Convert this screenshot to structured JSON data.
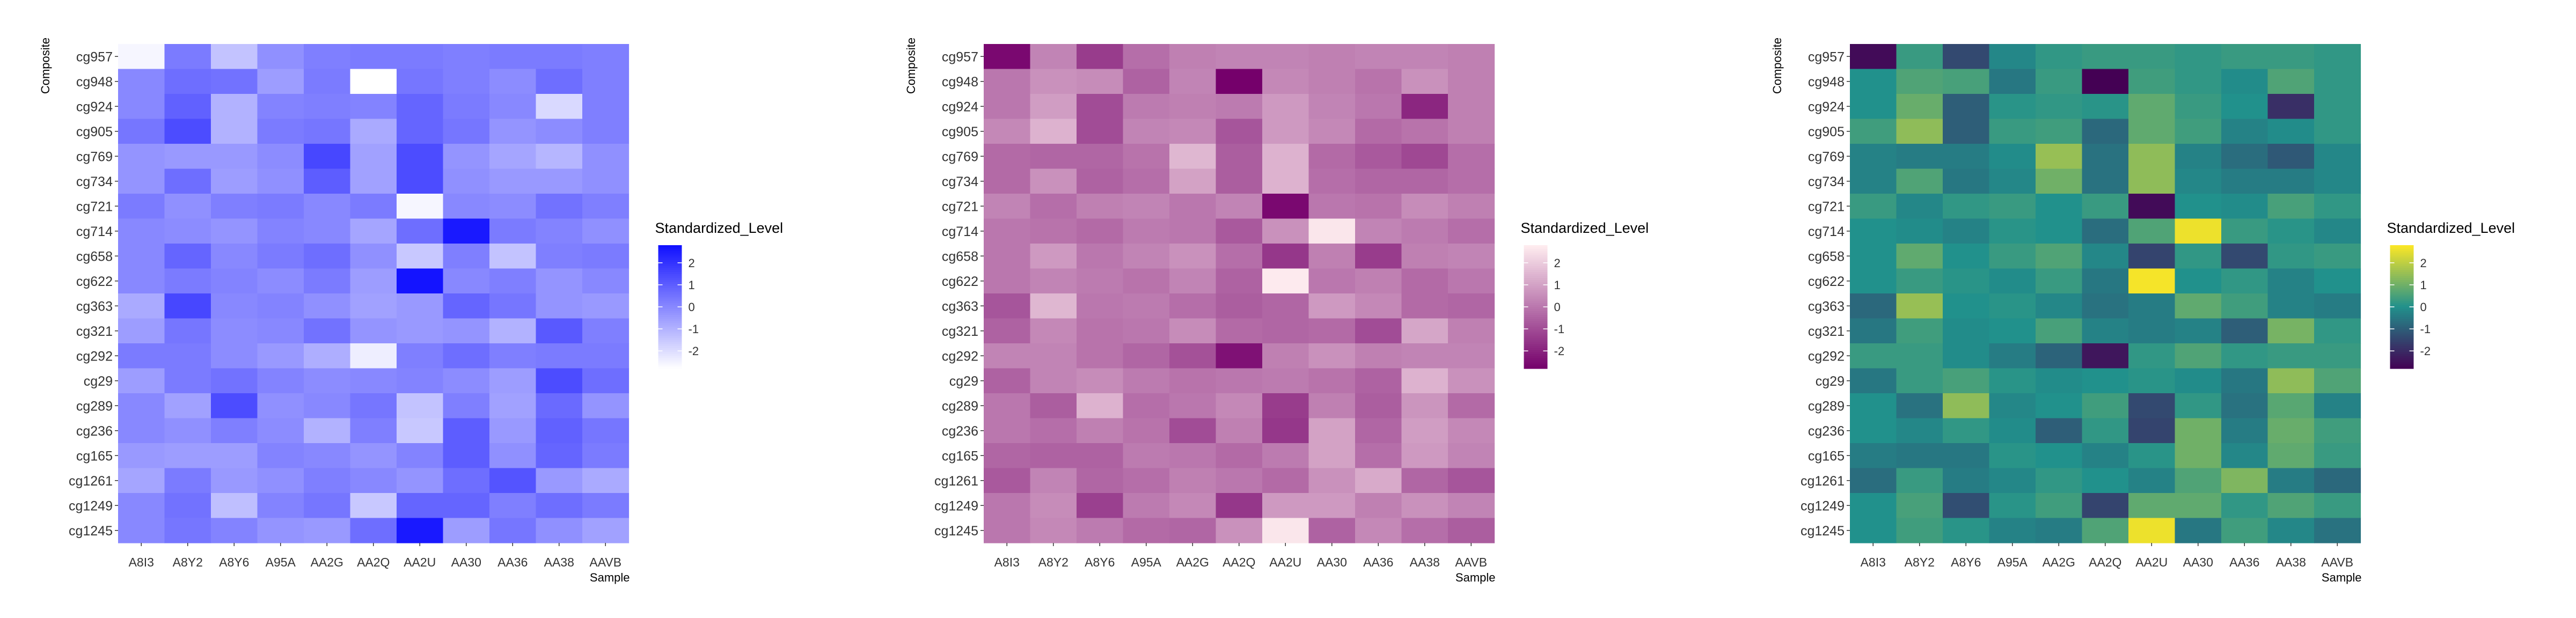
{
  "chart_data": [
    {
      "type": "heatmap",
      "palette": "purple",
      "colors": {
        "low": "#ffffff",
        "high": "#1010ff"
      },
      "y_axis_title": "Composite",
      "x_axis_title": "Sample",
      "legend_title": "Standardized_Level",
      "legend_ticks": [
        "2",
        "1",
        "0",
        "-1",
        "-2"
      ],
      "x_categories": [
        "A8I3",
        "A8Y2",
        "A8Y6",
        "A95A",
        "AA2G",
        "AA2Q",
        "AA2U",
        "AA30",
        "AA36",
        "AA38",
        "AAVB"
      ],
      "y_categories": [
        "cg957",
        "cg948",
        "cg924",
        "cg905",
        "cg769",
        "cg734",
        "cg721",
        "cg714",
        "cg658",
        "cg622",
        "cg363",
        "cg321",
        "cg292",
        "cg29",
        "cg289",
        "cg236",
        "cg165",
        "cg1261",
        "cg1249",
        "cg1245"
      ],
      "values": [
        [
          -2.6,
          0.3,
          -1.4,
          -0.2,
          0.2,
          0.3,
          0.3,
          0.2,
          0.3,
          0.3,
          0.2
        ],
        [
          0.0,
          0.6,
          0.5,
          -0.5,
          0.3,
          -2.8,
          0.4,
          0.2,
          -0.1,
          0.6,
          0.2
        ],
        [
          0.0,
          0.9,
          -1.0,
          0.1,
          0.2,
          0.1,
          0.8,
          0.3,
          0.0,
          -1.9,
          0.2
        ],
        [
          0.4,
          1.4,
          -1.0,
          0.3,
          0.4,
          -0.8,
          0.8,
          0.4,
          -0.3,
          -0.1,
          0.2
        ],
        [
          -0.3,
          -0.4,
          -0.4,
          -0.1,
          1.5,
          -0.6,
          1.4,
          -0.3,
          -0.7,
          -1.1,
          -0.2
        ],
        [
          -0.3,
          0.6,
          -0.5,
          -0.2,
          1.0,
          -0.6,
          1.4,
          -0.2,
          -0.4,
          -0.4,
          -0.2
        ],
        [
          0.3,
          -0.2,
          0.2,
          0.3,
          0.0,
          0.3,
          -2.6,
          0.0,
          -0.1,
          0.5,
          0.2
        ],
        [
          0.0,
          -0.1,
          -0.3,
          0.1,
          0.0,
          -0.7,
          0.6,
          2.6,
          0.3,
          0.1,
          -0.2
        ],
        [
          0.0,
          0.8,
          0.0,
          0.3,
          0.6,
          -0.2,
          -1.5,
          0.2,
          -1.4,
          0.2,
          0.3
        ],
        [
          0.0,
          0.3,
          0.1,
          -0.1,
          0.3,
          -0.5,
          2.7,
          0.0,
          0.2,
          -0.3,
          0.0
        ],
        [
          -0.8,
          1.5,
          0.0,
          0.1,
          -0.2,
          -0.6,
          -0.4,
          0.8,
          0.4,
          -0.3,
          -0.4
        ],
        [
          -0.5,
          0.4,
          -0.1,
          0.0,
          0.5,
          -0.3,
          -0.4,
          -0.3,
          -1.0,
          1.1,
          0.2
        ],
        [
          0.3,
          0.3,
          -0.1,
          -0.4,
          -0.9,
          -2.4,
          0.2,
          0.6,
          0.2,
          0.3,
          0.3
        ],
        [
          -0.5,
          0.3,
          0.5,
          0.1,
          -0.1,
          0.0,
          0.1,
          -0.1,
          -0.5,
          1.4,
          0.6
        ],
        [
          0.0,
          -0.6,
          1.4,
          -0.2,
          0.0,
          0.4,
          -1.4,
          0.2,
          -0.6,
          0.7,
          -0.3
        ],
        [
          0.0,
          -0.2,
          0.2,
          -0.1,
          -1.0,
          0.2,
          -1.5,
          1.0,
          -0.4,
          0.9,
          0.4
        ],
        [
          -0.4,
          -0.5,
          -0.5,
          0.1,
          0.0,
          -0.3,
          0.1,
          1.0,
          -0.2,
          0.8,
          0.3
        ],
        [
          -0.7,
          0.3,
          -0.4,
          -0.2,
          0.2,
          0.0,
          -0.3,
          0.6,
          1.2,
          -0.4,
          -0.8
        ],
        [
          0.0,
          0.5,
          -1.3,
          0.1,
          0.4,
          -1.5,
          0.8,
          0.8,
          0.2,
          0.6,
          0.3
        ],
        [
          0.0,
          0.4,
          0.1,
          -0.3,
          -0.4,
          0.6,
          2.6,
          -0.5,
          0.4,
          -0.2,
          -0.6
        ]
      ]
    },
    {
      "type": "heatmap",
      "palette": "pink",
      "colors": {
        "low": "#75006b",
        "high": "#ffeef0"
      },
      "y_axis_title": "Composite",
      "x_axis_title": "Sample",
      "legend_title": "Standardized_Level",
      "legend_ticks": [
        "2",
        "1",
        "0",
        "-1",
        "-2"
      ],
      "x_categories": [
        "A8I3",
        "A8Y2",
        "A8Y6",
        "A95A",
        "AA2G",
        "AA2Q",
        "AA2U",
        "AA30",
        "AA36",
        "AA38",
        "AAVB"
      ],
      "y_categories": [
        "cg957",
        "cg948",
        "cg924",
        "cg905",
        "cg769",
        "cg734",
        "cg721",
        "cg714",
        "cg658",
        "cg622",
        "cg363",
        "cg321",
        "cg292",
        "cg29",
        "cg289",
        "cg236",
        "cg165",
        "cg1261",
        "cg1249",
        "cg1245"
      ],
      "values": [
        [
          -2.6,
          0.3,
          -1.4,
          -0.2,
          0.2,
          0.3,
          0.3,
          0.2,
          0.3,
          0.3,
          0.2
        ],
        [
          0.0,
          0.6,
          0.5,
          -0.5,
          0.3,
          -2.8,
          0.4,
          0.2,
          -0.1,
          0.6,
          0.2
        ],
        [
          0.0,
          0.9,
          -1.0,
          0.1,
          0.2,
          0.1,
          0.8,
          0.3,
          0.0,
          -1.9,
          0.2
        ],
        [
          0.4,
          1.4,
          -1.0,
          0.3,
          0.4,
          -0.8,
          0.8,
          0.4,
          -0.3,
          -0.1,
          0.2
        ],
        [
          -0.3,
          -0.4,
          -0.4,
          -0.1,
          1.5,
          -0.6,
          1.4,
          -0.3,
          -0.7,
          -1.1,
          -0.2
        ],
        [
          -0.3,
          0.6,
          -0.5,
          -0.2,
          1.0,
          -0.6,
          1.4,
          -0.2,
          -0.4,
          -0.4,
          -0.2
        ],
        [
          0.3,
          -0.2,
          0.2,
          0.3,
          0.0,
          0.3,
          -2.6,
          0.0,
          -0.1,
          0.5,
          0.2
        ],
        [
          0.0,
          -0.1,
          -0.3,
          0.1,
          0.0,
          -0.7,
          0.6,
          2.6,
          0.3,
          0.1,
          -0.2
        ],
        [
          0.0,
          0.8,
          0.0,
          0.3,
          0.6,
          -0.2,
          -1.5,
          0.2,
          -1.4,
          0.2,
          0.3
        ],
        [
          0.0,
          0.3,
          0.1,
          -0.1,
          0.3,
          -0.5,
          2.7,
          0.0,
          0.2,
          -0.3,
          0.0
        ],
        [
          -0.8,
          1.5,
          0.0,
          0.1,
          -0.2,
          -0.6,
          -0.4,
          0.8,
          0.4,
          -0.3,
          -0.4
        ],
        [
          -0.5,
          0.4,
          -0.1,
          0.0,
          0.5,
          -0.3,
          -0.4,
          -0.3,
          -1.0,
          1.1,
          0.2
        ],
        [
          0.3,
          0.3,
          -0.1,
          -0.4,
          -0.9,
          -2.4,
          0.2,
          0.6,
          0.2,
          0.3,
          0.3
        ],
        [
          -0.5,
          0.3,
          0.5,
          0.1,
          -0.1,
          0.0,
          0.1,
          -0.1,
          -0.5,
          1.4,
          0.6
        ],
        [
          0.0,
          -0.6,
          1.4,
          -0.2,
          0.0,
          0.4,
          -1.4,
          0.2,
          -0.6,
          0.7,
          -0.3
        ],
        [
          0.0,
          -0.2,
          0.2,
          -0.1,
          -1.0,
          0.2,
          -1.5,
          1.0,
          -0.4,
          0.9,
          0.4
        ],
        [
          -0.4,
          -0.5,
          -0.5,
          0.1,
          0.0,
          -0.3,
          0.1,
          1.0,
          -0.2,
          0.8,
          0.3
        ],
        [
          -0.7,
          0.3,
          -0.4,
          -0.2,
          0.2,
          0.0,
          -0.3,
          0.6,
          1.2,
          -0.4,
          -0.8
        ],
        [
          0.0,
          0.5,
          -1.3,
          0.1,
          0.4,
          -1.5,
          0.8,
          0.8,
          0.2,
          0.6,
          0.3
        ],
        [
          0.0,
          0.4,
          0.1,
          -0.3,
          -0.4,
          0.6,
          2.6,
          -0.5,
          0.4,
          -0.2,
          -0.6
        ]
      ]
    },
    {
      "type": "heatmap",
      "palette": "viridis",
      "colors": {
        "low": "#440154",
        "mid": "#21918c",
        "high": "#fde725"
      },
      "y_axis_title": "Composite",
      "x_axis_title": "Sample",
      "legend_title": "Standardized_Level",
      "legend_ticks": [
        "2",
        "1",
        "0",
        "-1",
        "-2"
      ],
      "x_categories": [
        "A8I3",
        "A8Y2",
        "A8Y6",
        "A95A",
        "AA2G",
        "AA2Q",
        "AA2U",
        "AA30",
        "AA36",
        "AA38",
        "AAVB"
      ],
      "y_categories": [
        "cg957",
        "cg948",
        "cg924",
        "cg905",
        "cg769",
        "cg734",
        "cg721",
        "cg714",
        "cg658",
        "cg622",
        "cg363",
        "cg321",
        "cg292",
        "cg29",
        "cg289",
        "cg236",
        "cg165",
        "cg1261",
        "cg1249",
        "cg1245"
      ],
      "values": [
        [
          -2.6,
          0.3,
          -1.4,
          -0.2,
          0.2,
          0.3,
          0.3,
          0.2,
          0.3,
          0.3,
          0.2
        ],
        [
          0.0,
          0.6,
          0.5,
          -0.5,
          0.3,
          -2.8,
          0.4,
          0.2,
          -0.1,
          0.6,
          0.2
        ],
        [
          0.0,
          0.9,
          -1.0,
          0.1,
          0.2,
          0.1,
          0.8,
          0.3,
          0.0,
          -1.9,
          0.2
        ],
        [
          0.4,
          1.4,
          -1.0,
          0.3,
          0.4,
          -0.8,
          0.8,
          0.4,
          -0.3,
          -0.1,
          0.2
        ],
        [
          -0.3,
          -0.4,
          -0.4,
          -0.1,
          1.5,
          -0.6,
          1.4,
          -0.3,
          -0.7,
          -1.1,
          -0.2
        ],
        [
          -0.3,
          0.6,
          -0.5,
          -0.2,
          1.0,
          -0.6,
          1.4,
          -0.2,
          -0.4,
          -0.4,
          -0.2
        ],
        [
          0.3,
          -0.2,
          0.2,
          0.3,
          0.0,
          0.3,
          -2.6,
          0.0,
          -0.1,
          0.5,
          0.2
        ],
        [
          0.0,
          -0.1,
          -0.3,
          0.1,
          0.0,
          -0.7,
          0.6,
          2.6,
          0.3,
          0.1,
          -0.2
        ],
        [
          0.0,
          0.8,
          0.0,
          0.3,
          0.6,
          -0.2,
          -1.5,
          0.2,
          -1.4,
          0.2,
          0.3
        ],
        [
          0.0,
          0.3,
          0.1,
          -0.1,
          0.3,
          -0.5,
          2.7,
          0.0,
          0.2,
          -0.3,
          0.0
        ],
        [
          -0.8,
          1.5,
          0.0,
          0.1,
          -0.2,
          -0.6,
          -0.4,
          0.8,
          0.4,
          -0.3,
          -0.4
        ],
        [
          -0.5,
          0.4,
          -0.1,
          0.0,
          0.5,
          -0.3,
          -0.4,
          -0.3,
          -1.0,
          1.1,
          0.2
        ],
        [
          0.3,
          0.3,
          -0.1,
          -0.4,
          -0.9,
          -2.4,
          0.2,
          0.6,
          0.2,
          0.3,
          0.3
        ],
        [
          -0.5,
          0.3,
          0.5,
          0.1,
          -0.1,
          0.0,
          0.1,
          -0.1,
          -0.5,
          1.4,
          0.6
        ],
        [
          0.0,
          -0.6,
          1.4,
          -0.2,
          0.0,
          0.4,
          -1.4,
          0.2,
          -0.6,
          0.7,
          -0.3
        ],
        [
          0.0,
          -0.2,
          0.2,
          -0.1,
          -1.0,
          0.2,
          -1.5,
          1.0,
          -0.4,
          0.9,
          0.4
        ],
        [
          -0.4,
          -0.5,
          -0.5,
          0.1,
          0.0,
          -0.3,
          0.1,
          1.0,
          -0.2,
          0.8,
          0.3
        ],
        [
          -0.7,
          0.3,
          -0.4,
          -0.2,
          0.2,
          0.0,
          -0.3,
          0.6,
          1.2,
          -0.4,
          -0.8
        ],
        [
          0.0,
          0.5,
          -1.3,
          0.1,
          0.4,
          -1.5,
          0.8,
          0.8,
          0.2,
          0.6,
          0.3
        ],
        [
          0.0,
          0.4,
          0.1,
          -0.3,
          -0.4,
          0.6,
          2.6,
          -0.5,
          0.4,
          -0.2,
          -0.6
        ]
      ]
    }
  ]
}
